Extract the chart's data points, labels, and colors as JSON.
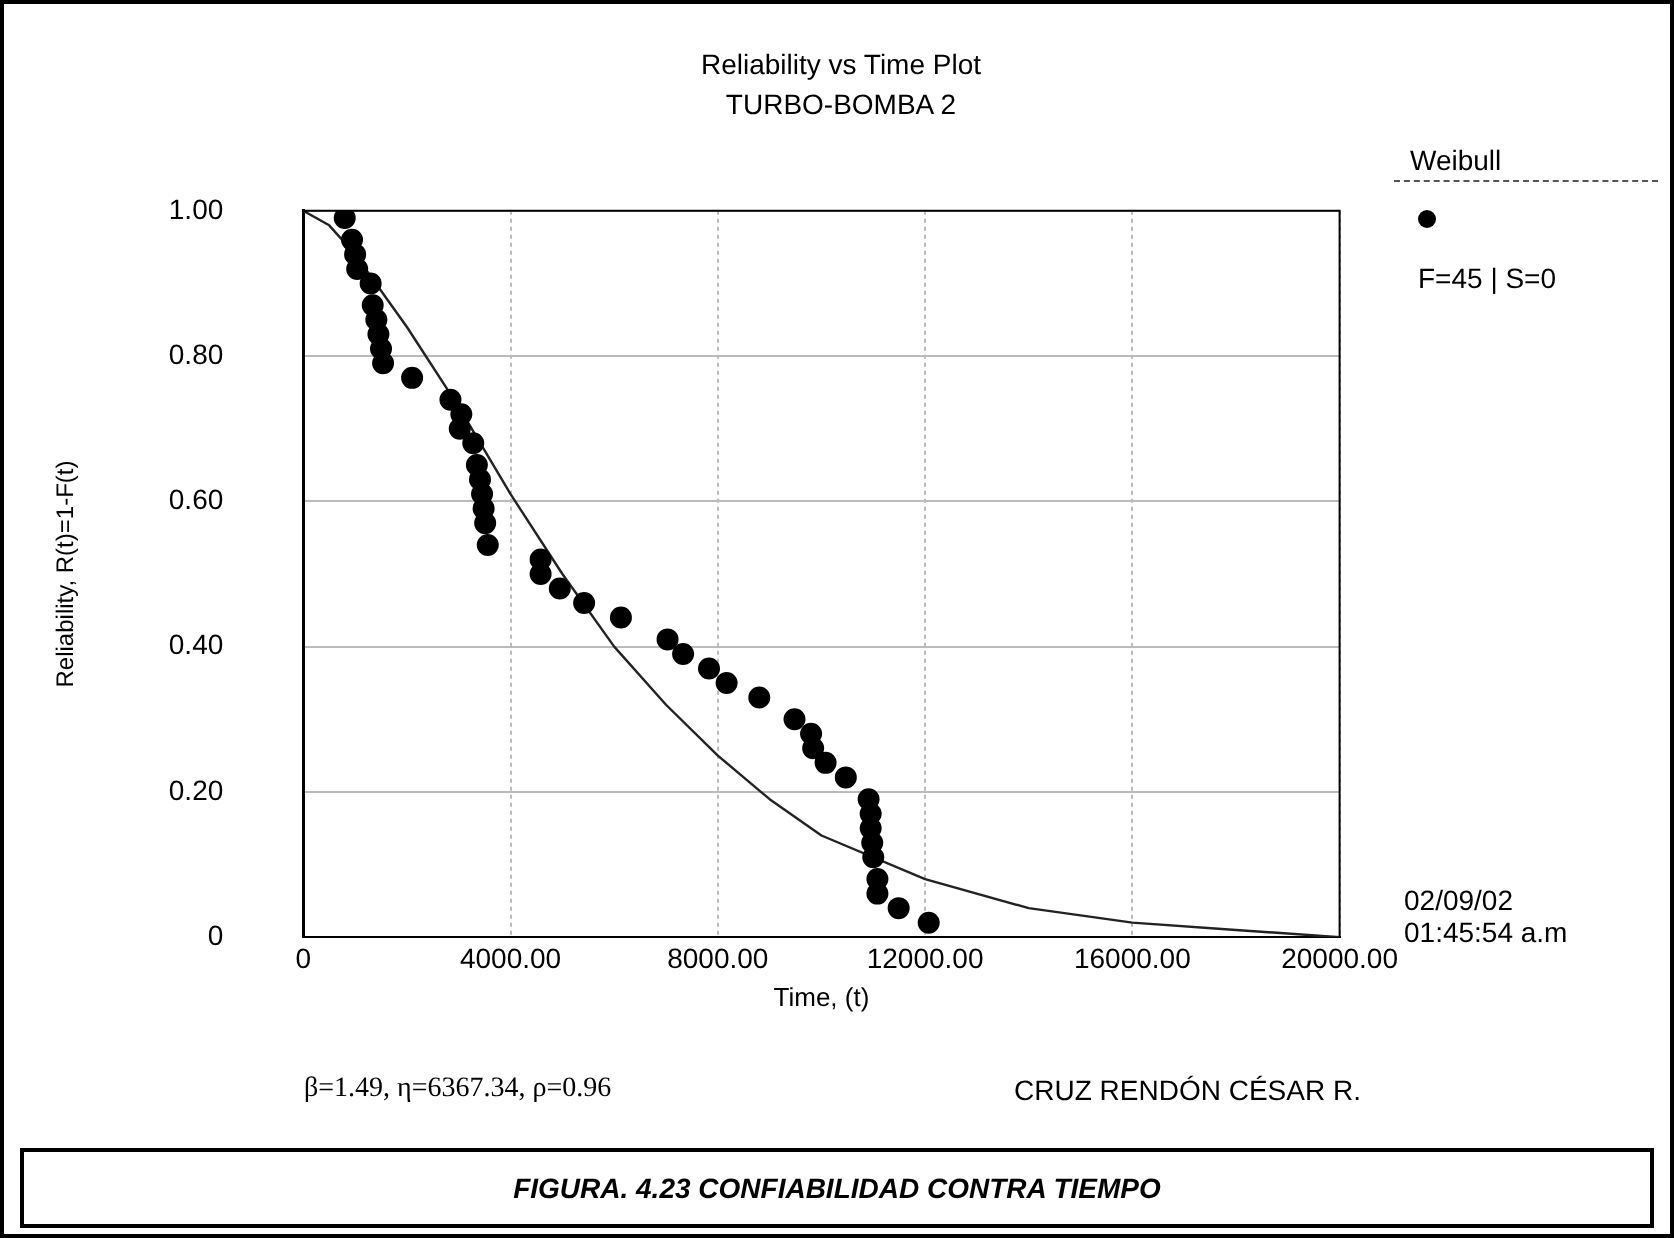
{
  "chart_data": {
    "type": "scatter",
    "title": "Reliability vs Time Plot",
    "subtitle": "TURBO-BOMBA 2",
    "xlabel": "Time, (t)",
    "ylabel": "Reliability, R(t)=1-F(t)",
    "legend_title": "Weibull",
    "legend": "right",
    "marker": "circle",
    "grid": true,
    "xlim": [
      0,
      20000
    ],
    "xticks": [
      0,
      {
        "value": 4000,
        "label": "4000.00"
      },
      {
        "value": 8000,
        "label": "8000.00"
      },
      {
        "value": 12000,
        "label": "12000.00"
      },
      {
        "value": 16000,
        "label": "16000.00"
      },
      {
        "value": 20000,
        "label": "20000.00"
      }
    ],
    "ylim": [
      0,
      1
    ],
    "yticks": [
      0,
      {
        "value": 0.2,
        "label": "0.20"
      },
      {
        "value": 0.4,
        "label": "0.40"
      },
      {
        "value": 0.6,
        "label": "0.60"
      },
      {
        "value": 0.8,
        "label": "0.80"
      },
      {
        "value": 1,
        "label": "1.00"
      }
    ],
    "series": [
      {
        "name": "F=45 | S=0",
        "type": "scatter",
        "color": "#000000",
        "x": [
          800,
          940,
          1000,
          1040,
          1300,
          1340,
          1410,
          1450,
          1500,
          1540,
          2100,
          2840,
          3050,
          3020,
          3280,
          3350,
          3410,
          3450,
          3480,
          3510,
          3560,
          4580,
          4580,
          4950,
          5420,
          6130,
          7030,
          7330,
          7830,
          8170,
          8800,
          9480,
          9800,
          9840,
          10080,
          10470,
          10910,
          10950,
          10950,
          10980,
          11000,
          11080,
          11080,
          11490,
          12070
        ],
        "values": [
          0.99,
          0.96,
          0.94,
          0.92,
          0.9,
          0.87,
          0.85,
          0.83,
          0.81,
          0.79,
          0.77,
          0.74,
          0.72,
          0.7,
          0.68,
          0.65,
          0.63,
          0.61,
          0.59,
          0.57,
          0.54,
          0.52,
          0.5,
          0.48,
          0.46,
          0.44,
          0.41,
          0.39,
          0.37,
          0.35,
          0.33,
          0.3,
          0.28,
          0.26,
          0.24,
          0.22,
          0.19,
          0.17,
          0.15,
          0.13,
          0.11,
          0.08,
          0.06,
          0.04,
          0.02
        ]
      },
      {
        "type": "line",
        "color": "#222222",
        "marker": "none",
        "x": [
          0,
          500,
          1000,
          1500,
          2000,
          3000,
          4000,
          5000,
          6000,
          7000,
          8000,
          9000,
          10000,
          12000,
          14000,
          16000,
          18000,
          20000
        ],
        "values": [
          1,
          0.98,
          0.94,
          0.89,
          0.84,
          0.73,
          0.61,
          0.5,
          0.4,
          0.32,
          0.25,
          0.19,
          0.14,
          0.08,
          0.04,
          0.02,
          0.01,
          0
        ]
      }
    ],
    "annotations": [
      "02/09/02\n01:45:54 a.m",
      "β=1.49, η=6367.34, ρ=0.96",
      "CRUZ RENDÓN CÉSAR R.",
      "FIGURA. 4.23 CONFIABILIDAD CONTRA TIEMPO"
    ]
  }
}
